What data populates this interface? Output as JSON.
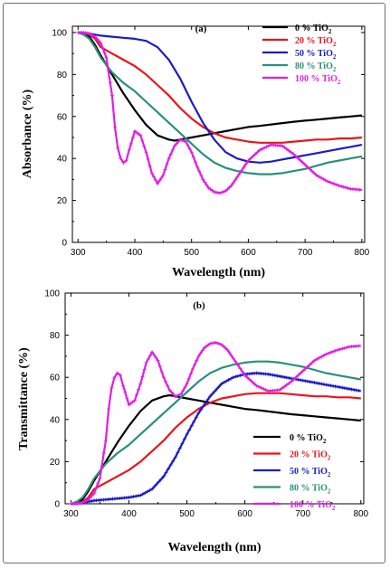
{
  "chart_data": [
    {
      "type": "line",
      "panel_label": "(a)",
      "xlabel": "Wavelength (nm)",
      "ylabel": "Absorbance (%)",
      "xlim": [
        290,
        805
      ],
      "ylim": [
        0,
        103
      ],
      "xticks": [
        300,
        400,
        500,
        600,
        700,
        800
      ],
      "yticks": [
        0,
        20,
        40,
        60,
        80,
        100
      ],
      "legend_position": "top-right",
      "series": [
        {
          "name": "0 % TiO2",
          "color": "#000000",
          "marker": "none",
          "x": [
            300,
            310,
            320,
            330,
            340,
            360,
            380,
            400,
            420,
            440,
            460,
            470,
            480,
            500,
            520,
            540,
            560,
            580,
            600,
            620,
            650,
            680,
            700,
            720,
            740,
            760,
            780,
            800
          ],
          "y": [
            100,
            99.5,
            98,
            94,
            89,
            80,
            71,
            63,
            56,
            51,
            49,
            48.5,
            49,
            50,
            51,
            52,
            53,
            54,
            55,
            55.5,
            56.5,
            57.5,
            58,
            58.5,
            59,
            59.5,
            60,
            60.5
          ]
        },
        {
          "name": "20 % TiO2",
          "color": "#e8151b",
          "marker": "none",
          "x": [
            300,
            310,
            320,
            330,
            340,
            360,
            380,
            400,
            420,
            440,
            460,
            480,
            500,
            520,
            540,
            560,
            580,
            600,
            620,
            640,
            660,
            680,
            700,
            720,
            740,
            760,
            780,
            800
          ],
          "y": [
            100,
            99.8,
            99,
            97,
            93,
            90,
            87,
            84,
            80,
            75,
            70,
            64,
            59,
            55,
            52,
            50,
            49,
            48,
            47.5,
            47.5,
            47.5,
            48,
            48.5,
            49,
            49,
            49.5,
            49.5,
            50
          ]
        },
        {
          "name": "50 % TiO2",
          "color": "#1a1acd",
          "marker": "none",
          "x": [
            300,
            320,
            340,
            360,
            380,
            400,
            420,
            440,
            460,
            480,
            500,
            520,
            540,
            560,
            580,
            600,
            620,
            640,
            660,
            680,
            700,
            720,
            740,
            760,
            780,
            800
          ],
          "y": [
            100,
            99.5,
            98.5,
            98,
            97.5,
            97,
            96,
            93,
            87,
            78,
            67,
            57,
            49,
            43,
            40,
            38.5,
            38,
            38.5,
            39.5,
            40.5,
            41.5,
            42.5,
            43.5,
            44.5,
            45.5,
            46.5
          ]
        },
        {
          "name": "80 % TiO2",
          "color": "#2a8f7a",
          "marker": "none",
          "x": [
            300,
            310,
            320,
            330,
            340,
            360,
            380,
            400,
            420,
            440,
            460,
            480,
            500,
            520,
            540,
            560,
            580,
            600,
            620,
            640,
            660,
            680,
            700,
            720,
            740,
            760,
            780,
            800
          ],
          "y": [
            100,
            99,
            97,
            93,
            88,
            81,
            76,
            72,
            67,
            62,
            57,
            52,
            47,
            42,
            38,
            35.5,
            34,
            33,
            32.5,
            32.5,
            33,
            34,
            35,
            36.5,
            38,
            39,
            40,
            41
          ]
        },
        {
          "name": "100 % TiO2",
          "color": "#e11ee1",
          "marker": "plus",
          "x": [
            300,
            310,
            320,
            330,
            340,
            350,
            360,
            365,
            370,
            375,
            380,
            385,
            390,
            400,
            410,
            420,
            430,
            440,
            450,
            460,
            470,
            480,
            490,
            500,
            510,
            520,
            530,
            540,
            550,
            560,
            570,
            580,
            600,
            620,
            640,
            660,
            680,
            700,
            720,
            740,
            760,
            780,
            800
          ],
          "y": [
            100,
            100,
            99.5,
            98,
            95,
            88,
            70,
            55,
            45,
            40,
            38,
            39,
            44,
            53,
            51,
            43,
            33,
            28,
            32,
            40,
            46,
            49,
            48,
            43,
            36,
            30,
            26,
            24,
            23.5,
            24.5,
            27,
            31,
            39,
            44,
            46.5,
            46,
            42,
            37,
            32,
            29,
            27,
            25.5,
            25
          ]
        }
      ]
    },
    {
      "type": "line",
      "panel_label": "(b)",
      "xlabel": "Wavelength (nm)",
      "ylabel": "Transmittance (%)",
      "xlim": [
        290,
        805
      ],
      "ylim": [
        0,
        100
      ],
      "xticks": [
        300,
        400,
        500,
        600,
        700,
        800
      ],
      "yticks": [
        0,
        20,
        40,
        60,
        80,
        100
      ],
      "legend_position": "bottom-right",
      "series": [
        {
          "name": "0 % TiO2",
          "color": "#000000",
          "marker": "none",
          "x": [
            300,
            310,
            320,
            330,
            340,
            360,
            380,
            400,
            420,
            440,
            460,
            470,
            480,
            500,
            520,
            540,
            560,
            580,
            600,
            620,
            650,
            680,
            700,
            720,
            740,
            760,
            780,
            800
          ],
          "y": [
            0,
            0.5,
            2,
            6,
            11,
            20,
            29,
            37,
            44,
            49,
            51,
            51.5,
            51,
            50,
            49,
            48,
            47,
            46,
            45,
            44.5,
            43.5,
            42.5,
            42,
            41.5,
            41,
            40.5,
            40,
            39.5
          ]
        },
        {
          "name": "20 % TiO2",
          "color": "#e8151b",
          "marker": "none",
          "x": [
            300,
            310,
            320,
            330,
            340,
            360,
            380,
            400,
            420,
            440,
            460,
            480,
            500,
            520,
            540,
            560,
            580,
            600,
            620,
            640,
            660,
            680,
            700,
            720,
            740,
            760,
            780,
            800
          ],
          "y": [
            0,
            0.2,
            1,
            3,
            7,
            10,
            13,
            16,
            20,
            25,
            30,
            36,
            41,
            45,
            48,
            50,
            51,
            52,
            52.5,
            52.5,
            52.5,
            52,
            51.5,
            51,
            51,
            50.5,
            50.5,
            50
          ]
        },
        {
          "name": "50 % TiO2",
          "color": "#1a1acd",
          "marker": "plus",
          "x": [
            300,
            320,
            340,
            360,
            380,
            400,
            420,
            440,
            460,
            480,
            500,
            520,
            540,
            560,
            580,
            600,
            620,
            640,
            660,
            680,
            700,
            720,
            740,
            760,
            780,
            800
          ],
          "y": [
            0,
            0.5,
            1.5,
            2,
            2.5,
            3,
            4,
            7,
            13,
            22,
            33,
            43,
            51,
            57,
            60,
            61.5,
            62,
            61.5,
            60.5,
            59.5,
            58.5,
            57.5,
            56.5,
            55.5,
            54.5,
            53.5
          ]
        },
        {
          "name": "80 % TiO2",
          "color": "#2a8f7a",
          "marker": "none",
          "x": [
            300,
            310,
            320,
            330,
            340,
            360,
            380,
            400,
            420,
            440,
            460,
            480,
            500,
            520,
            540,
            560,
            580,
            600,
            620,
            640,
            660,
            680,
            700,
            720,
            740,
            760,
            780,
            800
          ],
          "y": [
            0,
            1,
            3,
            7,
            12,
            19,
            24,
            28,
            33,
            38,
            43,
            48,
            53,
            58,
            62,
            64.5,
            66,
            67,
            67.5,
            67.5,
            67,
            66,
            65,
            63.5,
            62,
            61,
            60,
            59
          ]
        },
        {
          "name": "100 % TiO2",
          "color": "#e11ee1",
          "marker": "plus",
          "x": [
            300,
            310,
            320,
            330,
            340,
            350,
            360,
            365,
            370,
            375,
            380,
            385,
            390,
            400,
            410,
            420,
            430,
            440,
            450,
            460,
            470,
            480,
            490,
            500,
            510,
            520,
            530,
            540,
            550,
            560,
            570,
            580,
            600,
            620,
            640,
            660,
            680,
            700,
            720,
            740,
            760,
            780,
            800
          ],
          "y": [
            0,
            0,
            0.5,
            2,
            5,
            12,
            30,
            45,
            55,
            60,
            62,
            61,
            56,
            47,
            49,
            57,
            67,
            72,
            68,
            60,
            54,
            51,
            52,
            57,
            64,
            70,
            74,
            76,
            76.5,
            75.5,
            73,
            69,
            61,
            56,
            53.5,
            54,
            58,
            63,
            68,
            71,
            73,
            74.5,
            75
          ]
        }
      ]
    }
  ]
}
